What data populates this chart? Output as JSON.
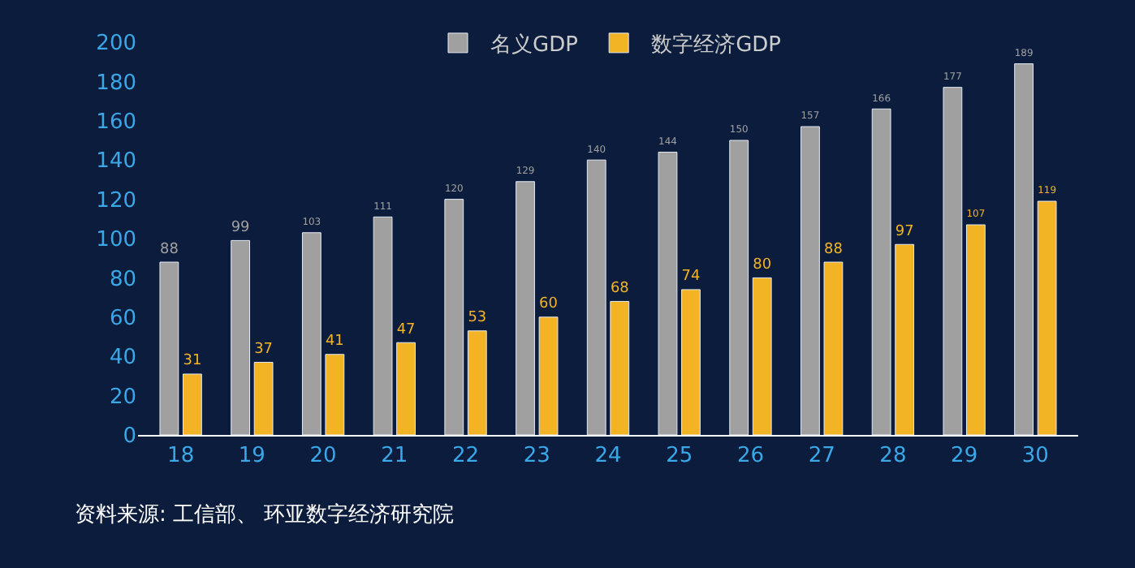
{
  "chart_data": {
    "type": "bar",
    "categories": [
      "18",
      "19",
      "20",
      "21",
      "22",
      "23",
      "24",
      "25",
      "26",
      "27",
      "28",
      "29",
      "30"
    ],
    "series": [
      {
        "name": "名义GDP",
        "color": "#a0a0a0",
        "values": [
          88,
          99,
          103,
          111,
          120,
          129,
          140,
          144,
          150,
          157,
          166,
          177,
          189
        ]
      },
      {
        "name": "数字经济GDP",
        "color": "#f2b425",
        "values": [
          31,
          37,
          41,
          47,
          53,
          60,
          68,
          74,
          80,
          88,
          97,
          107,
          119
        ]
      }
    ],
    "ylim": [
      0,
      200
    ],
    "yticks": [
      0,
      20,
      40,
      60,
      80,
      100,
      120,
      140,
      160,
      180,
      200
    ],
    "grid": false,
    "legend": "top",
    "data_labels": true,
    "annotations": [
      "资料来源: 工信部、 环亚数字经济研究院"
    ]
  }
}
